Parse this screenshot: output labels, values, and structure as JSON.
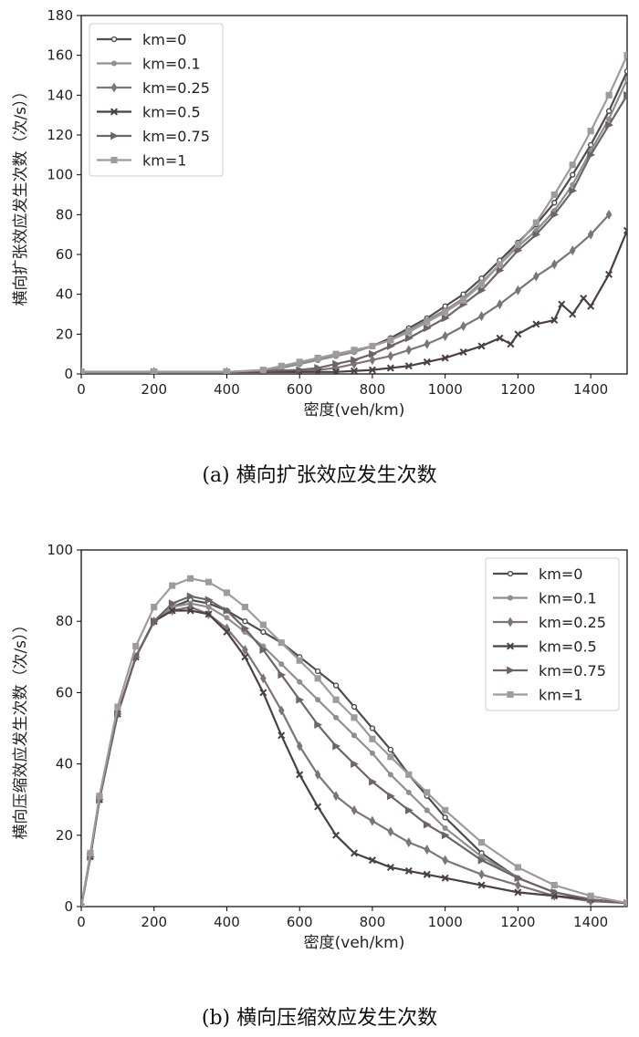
{
  "chart_data": [
    {
      "type": "line",
      "title": "",
      "caption": "(a) 横向扩张效应发生次数",
      "xlabel": "密度(veh/km)",
      "ylabel": "横向扩张效应发生次数（次/s））",
      "xlim": [
        0,
        1500
      ],
      "ylim": [
        0,
        180
      ],
      "xticks": [
        0,
        200,
        400,
        600,
        800,
        1000,
        1200,
        1400
      ],
      "yticks": [
        0,
        20,
        40,
        60,
        80,
        100,
        120,
        140,
        160,
        180
      ],
      "legend_position": "top-left",
      "series": [
        {
          "name": "km=0",
          "color": "#4d4d4d",
          "marker": "circle-open",
          "x": [
            0,
            200,
            400,
            500,
            550,
            600,
            650,
            700,
            750,
            800,
            850,
            900,
            950,
            1000,
            1050,
            1100,
            1150,
            1200,
            1250,
            1300,
            1350,
            1400,
            1450,
            1500
          ],
          "y": [
            1,
            1,
            1,
            1.5,
            3,
            5,
            7,
            9,
            11,
            14,
            18,
            23,
            28,
            34,
            40,
            48,
            57,
            66,
            75,
            86,
            100,
            115,
            132,
            152
          ]
        },
        {
          "name": "km=0.1",
          "color": "#8f8f8f",
          "marker": "circle",
          "x": [
            0,
            200,
            400,
            500,
            550,
            600,
            650,
            700,
            750,
            800,
            850,
            900,
            950,
            1000,
            1050,
            1100,
            1150,
            1200,
            1250,
            1300,
            1350,
            1400,
            1450,
            1500
          ],
          "y": [
            1,
            1,
            1,
            1.5,
            3,
            5,
            7,
            9,
            11,
            14,
            17,
            22,
            27,
            32,
            38,
            46,
            55,
            64,
            72,
            82,
            95,
            112,
            128,
            148
          ]
        },
        {
          "name": "km=0.25",
          "color": "#7e7478",
          "marker": "diamond",
          "x": [
            0,
            200,
            400,
            600,
            650,
            700,
            750,
            800,
            850,
            900,
            950,
            1000,
            1050,
            1100,
            1150,
            1200,
            1250,
            1300,
            1350,
            1400,
            1450
          ],
          "y": [
            1,
            1,
            1,
            1,
            2,
            3,
            5,
            7,
            9,
            12,
            15,
            19,
            24,
            29,
            35,
            42,
            49,
            55,
            62,
            70,
            80
          ]
        },
        {
          "name": "km=0.5",
          "color": "#4a3f44",
          "marker": "x",
          "x": [
            0,
            200,
            400,
            600,
            650,
            700,
            750,
            800,
            850,
            900,
            950,
            1000,
            1050,
            1100,
            1150,
            1180,
            1200,
            1250,
            1300,
            1320,
            1350,
            1380,
            1400,
            1450,
            1500
          ],
          "y": [
            1,
            1,
            1,
            1,
            1,
            1,
            1.5,
            2,
            3,
            4,
            6,
            8,
            11,
            14,
            18,
            15,
            20,
            25,
            27,
            35,
            30,
            38,
            34,
            50,
            72
          ]
        },
        {
          "name": "km=0.75",
          "color": "#6e6468",
          "marker": "triangle-right",
          "x": [
            0,
            200,
            400,
            600,
            650,
            700,
            750,
            800,
            850,
            900,
            950,
            1000,
            1050,
            1100,
            1150,
            1200,
            1250,
            1300,
            1350,
            1400,
            1450,
            1500
          ],
          "y": [
            1,
            1,
            1,
            2,
            3,
            5,
            7,
            10,
            14,
            18,
            23,
            28,
            35,
            42,
            52,
            62,
            70,
            80,
            92,
            110,
            125,
            140
          ]
        },
        {
          "name": "km=1",
          "color": "#a09a9d",
          "marker": "square",
          "x": [
            0,
            200,
            400,
            500,
            550,
            600,
            650,
            700,
            750,
            800,
            850,
            900,
            950,
            1000,
            1050,
            1100,
            1150,
            1200,
            1250,
            1300,
            1350,
            1400,
            1450,
            1500
          ],
          "y": [
            1,
            1,
            1,
            2,
            4,
            6,
            8,
            10,
            12,
            14,
            17,
            21,
            26,
            31,
            37,
            45,
            55,
            65,
            76,
            90,
            105,
            122,
            140,
            160
          ]
        }
      ]
    },
    {
      "type": "line",
      "title": "",
      "caption": "(b) 横向压缩效应发生次数",
      "xlabel": "密度(veh/km)",
      "ylabel": "横向压缩效应发生次数（次/s））",
      "xlim": [
        0,
        1500
      ],
      "ylim": [
        0,
        100
      ],
      "xticks": [
        0,
        200,
        400,
        600,
        800,
        1000,
        1200,
        1400
      ],
      "yticks": [
        0,
        20,
        40,
        60,
        80,
        100
      ],
      "legend_position": "top-right",
      "series": [
        {
          "name": "km=0",
          "color": "#4d4d4d",
          "marker": "circle-open",
          "x": [
            0,
            25,
            50,
            100,
            150,
            200,
            250,
            300,
            350,
            400,
            450,
            500,
            550,
            600,
            650,
            700,
            750,
            800,
            850,
            900,
            950,
            1000,
            1100,
            1200,
            1300,
            1400,
            1500
          ],
          "y": [
            0,
            14,
            30,
            54,
            70,
            80,
            84,
            86,
            85,
            83,
            80,
            77,
            74,
            70,
            66,
            62,
            56,
            50,
            44,
            37,
            31,
            25,
            15,
            8,
            4,
            2,
            1
          ]
        },
        {
          "name": "km=0.1",
          "color": "#8f8f8f",
          "marker": "circle",
          "x": [
            0,
            25,
            50,
            100,
            150,
            200,
            250,
            300,
            350,
            400,
            450,
            500,
            550,
            600,
            650,
            700,
            750,
            800,
            850,
            900,
            950,
            1000,
            1100,
            1200,
            1300,
            1400,
            1500
          ],
          "y": [
            0,
            14,
            30,
            54,
            70,
            80,
            84,
            85,
            84,
            81,
            77,
            73,
            68,
            63,
            58,
            53,
            48,
            43,
            37,
            32,
            27,
            22,
            14,
            8,
            4,
            2,
            1
          ]
        },
        {
          "name": "km=0.25",
          "color": "#7e7478",
          "marker": "diamond",
          "x": [
            0,
            25,
            50,
            100,
            150,
            200,
            250,
            300,
            350,
            400,
            450,
            500,
            550,
            600,
            650,
            700,
            750,
            800,
            850,
            900,
            950,
            1000,
            1100,
            1200,
            1300,
            1400,
            1500
          ],
          "y": [
            0,
            14,
            30,
            54,
            70,
            80,
            83,
            84,
            82,
            78,
            72,
            64,
            55,
            45,
            37,
            31,
            27,
            24,
            21,
            18,
            16,
            13,
            9,
            6,
            3,
            1.5,
            1
          ]
        },
        {
          "name": "km=0.5",
          "color": "#4a3f44",
          "marker": "x",
          "x": [
            0,
            25,
            50,
            100,
            150,
            200,
            250,
            300,
            350,
            400,
            450,
            500,
            550,
            600,
            650,
            700,
            750,
            800,
            850,
            900,
            950,
            1000,
            1100,
            1200,
            1300,
            1400,
            1500
          ],
          "y": [
            0,
            14,
            30,
            54,
            70,
            80,
            83,
            83,
            82,
            77,
            70,
            60,
            48,
            37,
            28,
            20,
            15,
            13,
            11,
            10,
            9,
            8,
            6,
            4,
            3,
            2,
            1
          ]
        },
        {
          "name": "km=0.75",
          "color": "#6e6468",
          "marker": "triangle-right",
          "x": [
            0,
            25,
            50,
            100,
            150,
            200,
            250,
            300,
            350,
            400,
            450,
            500,
            550,
            600,
            650,
            700,
            750,
            800,
            850,
            900,
            950,
            1000,
            1100,
            1200,
            1300,
            1400,
            1500
          ],
          "y": [
            0,
            14,
            30,
            54,
            70,
            80,
            85,
            87,
            86,
            83,
            78,
            72,
            65,
            58,
            51,
            45,
            40,
            35,
            31,
            27,
            23,
            20,
            13,
            8,
            4,
            2,
            1
          ]
        },
        {
          "name": "km=1",
          "color": "#a09a9d",
          "marker": "square",
          "x": [
            0,
            25,
            50,
            100,
            150,
            200,
            250,
            300,
            350,
            400,
            450,
            500,
            550,
            600,
            650,
            700,
            750,
            800,
            850,
            900,
            950,
            1000,
            1100,
            1200,
            1300,
            1400,
            1500
          ],
          "y": [
            0,
            15,
            31,
            56,
            73,
            84,
            90,
            92,
            91,
            88,
            84,
            79,
            74,
            69,
            64,
            58,
            53,
            47,
            42,
            37,
            32,
            27,
            18,
            11,
            6,
            3,
            1
          ]
        }
      ]
    }
  ]
}
